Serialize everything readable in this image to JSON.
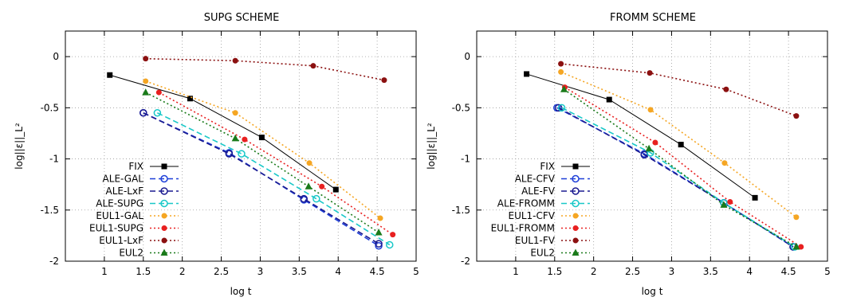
{
  "chart_data": [
    {
      "type": "line",
      "title": "SUPG SCHEME",
      "xlabel": "log t",
      "ylabel": "log||ε||_L²",
      "xlim": [
        0.5,
        5
      ],
      "ylim": [
        -2,
        0.25
      ],
      "xticks": [
        1,
        1.5,
        2,
        2.5,
        3,
        3.5,
        4,
        4.5,
        5
      ],
      "yticks": [
        0,
        -0.5,
        -1,
        -1.5,
        -2
      ],
      "xtick_labels": [
        "1",
        "1.5",
        "2",
        "2.5",
        "3",
        "3.5",
        "4",
        "4.5",
        "5"
      ],
      "ytick_labels": [
        "0",
        "-0.5",
        "-1",
        "-1.5",
        "-2"
      ],
      "grid": true,
      "legend_position": "bottom-left",
      "series": [
        {
          "name": "FIX",
          "color": "#000000",
          "marker": "square",
          "dash": "",
          "x": [
            1.07,
            2.1,
            3.02,
            3.97
          ],
          "y": [
            -0.18,
            -0.41,
            -0.79,
            -1.3
          ]
        },
        {
          "name": "ALE-GAL",
          "color": "#1e3fd8",
          "marker": "open-circle",
          "dash": "7,4",
          "x": [
            1.5,
            2.6,
            3.56,
            4.52
          ],
          "y": [
            -0.55,
            -0.94,
            -1.4,
            -1.85
          ]
        },
        {
          "name": "ALE-LxF",
          "color": "#1a1a90",
          "marker": "open-circle",
          "dash": "7,4",
          "x": [
            1.5,
            2.6,
            3.56,
            4.52
          ],
          "y": [
            -0.55,
            -0.95,
            -1.39,
            -1.83
          ]
        },
        {
          "name": "ALE-SUPG",
          "color": "#19c8c8",
          "marker": "open-circle",
          "dash": "7,4",
          "x": [
            1.68,
            2.76,
            3.72,
            4.66
          ],
          "y": [
            -0.55,
            -0.95,
            -1.39,
            -1.84
          ]
        },
        {
          "name": "EUL1-GAL",
          "color": "#f5a623",
          "marker": "filled-circle",
          "dash": "2,3",
          "x": [
            1.53,
            2.68,
            3.63,
            4.54
          ],
          "y": [
            -0.24,
            -0.55,
            -1.04,
            -1.58
          ]
        },
        {
          "name": "EUL1-SUPG",
          "color": "#e82020",
          "marker": "filled-circle",
          "dash": "2,3",
          "x": [
            1.7,
            2.8,
            3.79,
            4.7
          ],
          "y": [
            -0.35,
            -0.81,
            -1.27,
            -1.74
          ]
        },
        {
          "name": "EUL1-LxF",
          "color": "#8b1010",
          "marker": "filled-circle",
          "dash": "2,3",
          "x": [
            1.53,
            2.68,
            3.68,
            4.59
          ],
          "y": [
            -0.02,
            -0.04,
            -0.09,
            -0.23
          ]
        },
        {
          "name": "EUL2",
          "color": "#1a7a1a",
          "marker": "filled-triangle",
          "dash": "2,3",
          "x": [
            1.53,
            2.68,
            3.62,
            4.52
          ],
          "y": [
            -0.35,
            -0.8,
            -1.27,
            -1.72
          ]
        }
      ]
    },
    {
      "type": "line",
      "title": "FROMM SCHEME",
      "xlabel": "log t",
      "ylabel": "log||ε||_L²",
      "xlim": [
        0.5,
        5
      ],
      "ylim": [
        -2,
        0.25
      ],
      "xticks": [
        1,
        1.5,
        2,
        2.5,
        3,
        3.5,
        4,
        4.5,
        5
      ],
      "yticks": [
        0,
        -0.5,
        -1,
        -1.5,
        -2
      ],
      "xtick_labels": [
        "1",
        "1.5",
        "2",
        "2.5",
        "3",
        "3.5",
        "4",
        "4.5",
        "5"
      ],
      "ytick_labels": [
        "0",
        "-0.5",
        "-1",
        "-1.5",
        "-2"
      ],
      "grid": true,
      "legend_position": "bottom-left",
      "series": [
        {
          "name": "FIX",
          "color": "#000000",
          "marker": "square",
          "dash": "",
          "x": [
            1.14,
            2.2,
            3.12,
            4.07
          ],
          "y": [
            -0.17,
            -0.42,
            -0.86,
            -1.38
          ]
        },
        {
          "name": "ALE-CFV",
          "color": "#1e3fd8",
          "marker": "open-circle",
          "dash": "7,4",
          "x": [
            1.53,
            2.65,
            3.67,
            4.56
          ],
          "y": [
            -0.5,
            -0.95,
            -1.43,
            -1.86
          ]
        },
        {
          "name": "ALE-FV",
          "color": "#1a1a90",
          "marker": "open-circle",
          "dash": "7,4",
          "x": [
            1.55,
            2.65,
            3.67,
            4.56
          ],
          "y": [
            -0.5,
            -0.96,
            -1.43,
            -1.86
          ]
        },
        {
          "name": "ALE-FROMM",
          "color": "#19c8c8",
          "marker": "open-circle",
          "dash": "7,4",
          "x": [
            1.59,
            2.73,
            3.67,
            4.58
          ],
          "y": [
            -0.5,
            -0.94,
            -1.43,
            -1.86
          ]
        },
        {
          "name": "EUL1-CFV",
          "color": "#f5a623",
          "marker": "filled-circle",
          "dash": "2,3",
          "x": [
            1.58,
            2.73,
            3.68,
            4.6
          ],
          "y": [
            -0.15,
            -0.52,
            -1.04,
            -1.57
          ]
        },
        {
          "name": "EUL1-FROMM",
          "color": "#e82020",
          "marker": "filled-circle",
          "dash": "2,3",
          "x": [
            1.63,
            2.79,
            3.75,
            4.66
          ],
          "y": [
            -0.3,
            -0.84,
            -1.42,
            -1.86
          ]
        },
        {
          "name": "EUL1-FV",
          "color": "#8b1010",
          "marker": "filled-circle",
          "dash": "2,3",
          "x": [
            1.58,
            2.72,
            3.7,
            4.6
          ],
          "y": [
            -0.07,
            -0.16,
            -0.32,
            -0.58
          ]
        },
        {
          "name": "EUL2",
          "color": "#1a7a1a",
          "marker": "filled-triangle",
          "dash": "2,3",
          "x": [
            1.62,
            2.71,
            3.67,
            4.6
          ],
          "y": [
            -0.32,
            -0.9,
            -1.45,
            -1.86
          ]
        }
      ]
    }
  ]
}
